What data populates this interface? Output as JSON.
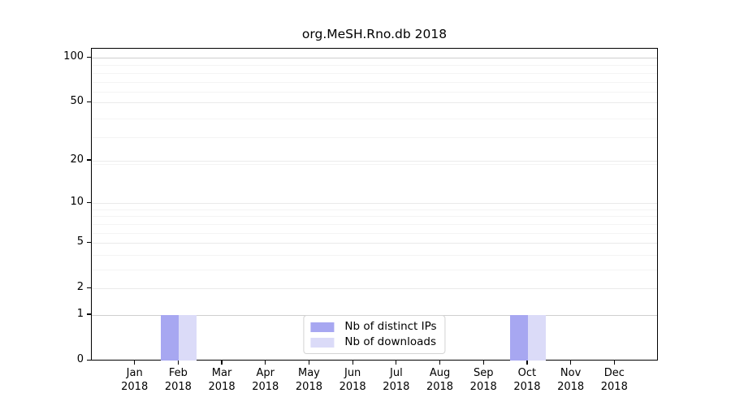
{
  "figure": {
    "title": "org.MeSH.Rno.db 2018"
  },
  "chart_data": {
    "type": "bar",
    "title": "org.MeSH.Rno.db 2018",
    "x_months": [
      "Jan",
      "Feb",
      "Mar",
      "Apr",
      "May",
      "Jun",
      "Jul",
      "Aug",
      "Sep",
      "Oct",
      "Nov",
      "Dec"
    ],
    "x_year": "2018",
    "series": [
      {
        "name": "Nb of distinct IPs",
        "color": "#a7a7f1",
        "values": [
          0,
          1,
          0,
          0,
          0,
          0,
          0,
          0,
          0,
          1,
          0,
          0
        ]
      },
      {
        "name": "Nb of downloads",
        "color": "#dbdbf8",
        "values": [
          0,
          1,
          0,
          0,
          0,
          0,
          0,
          0,
          0,
          1,
          0,
          0
        ]
      }
    ],
    "y_scale": "log10(value+1)",
    "y_ticks": [
      0,
      1,
      2,
      5,
      10,
      20,
      50,
      100
    ],
    "y_minor_ticks_plus1": [
      4,
      5,
      7,
      8,
      9,
      10,
      20,
      30,
      40,
      60,
      70,
      80,
      90
    ],
    "ylim": [
      0,
      115
    ],
    "grid": "horizontal",
    "legend_position": "bottom-center"
  }
}
